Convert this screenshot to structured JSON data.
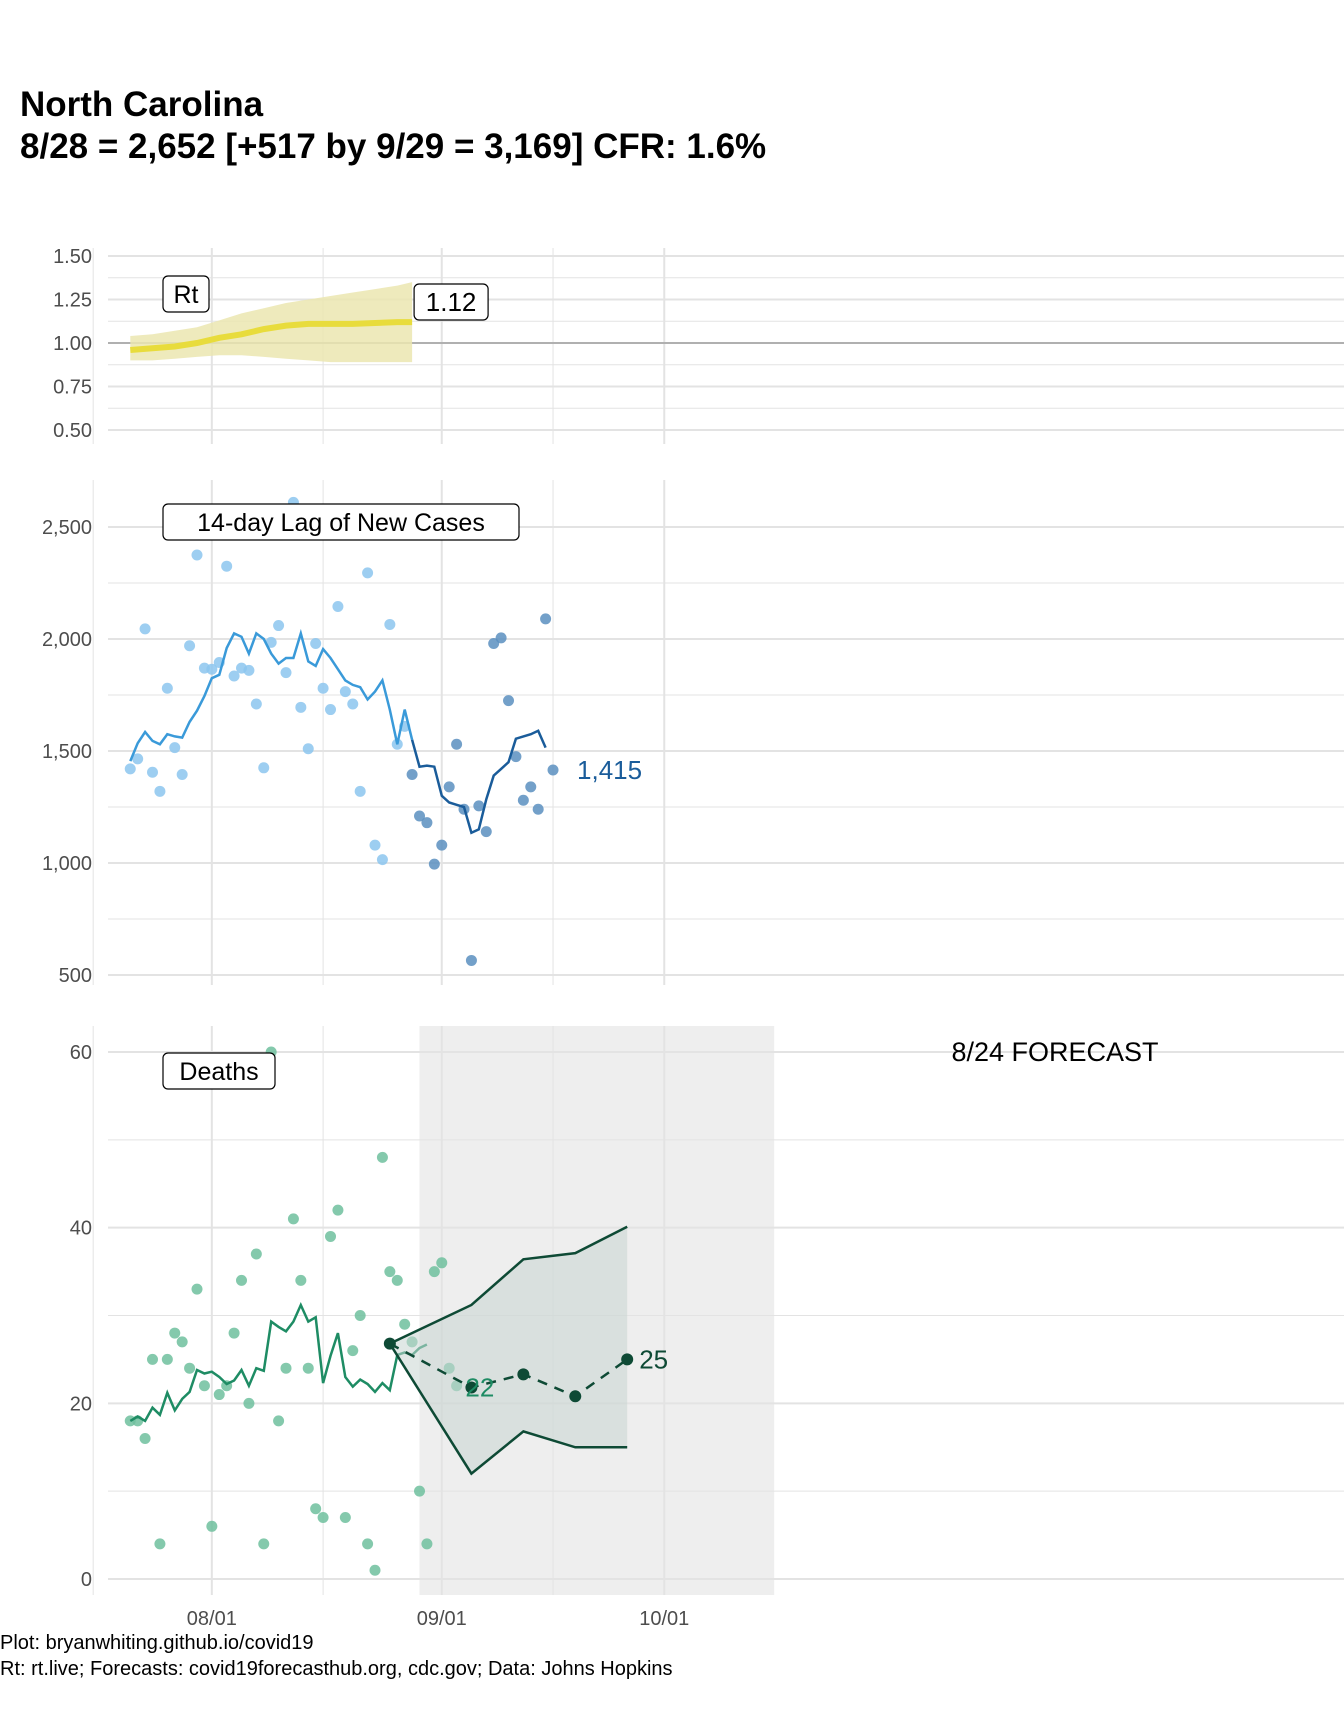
{
  "title": {
    "line1": "North Carolina",
    "line2": "8/28 = 2,652 [+517 by 9/29 = 3,169] CFR: 1.6%"
  },
  "caption": {
    "line1": "Plot: bryanwhiting.github.io/covid19",
    "line2": "Rt: rt.live; Forecasts: covid19forecasthub.org, cdc.gov; Data: Johns Hopkins"
  },
  "colors": {
    "rt_line": "#e8dc3c",
    "rt_band": "#ebe6b0",
    "cases_obs": "#3a9ad9",
    "cases_recent": "#1a5c9a",
    "cases_dot_obs": "#8cc6ef",
    "cases_dot_recent": "#5b8fc0",
    "deaths_line": "#1e8c64",
    "deaths_dot": "#6fbf9d",
    "forecast": "#0e4a35",
    "forecast_band": "#c8d6d2",
    "forecast_bg": "#eeeeee",
    "grid": "#e3e3e3",
    "refline": "#b0b0b0"
  },
  "chart_data": [
    {
      "type": "line",
      "panel": "rt",
      "label": "Rt",
      "ylim": [
        0.5,
        1.5
      ],
      "yticks": [
        "0.50",
        "0.75",
        "1.00",
        "1.25",
        "1.50"
      ],
      "ytick_values": [
        0.5,
        0.75,
        1.0,
        1.25,
        1.5
      ],
      "reference_line": 1.0,
      "end_label": "1.12",
      "series": [
        {
          "x": [
            "07/21",
            "07/24",
            "07/27",
            "07/30",
            "08/02",
            "08/05",
            "08/08",
            "08/11",
            "08/14",
            "08/17",
            "08/20",
            "08/23",
            "08/26",
            "08/28"
          ],
          "values": [
            0.96,
            0.97,
            0.98,
            1.0,
            1.03,
            1.05,
            1.08,
            1.1,
            1.11,
            1.11,
            1.11,
            1.115,
            1.12,
            1.12
          ],
          "lower": [
            0.9,
            0.9,
            0.91,
            0.92,
            0.93,
            0.93,
            0.92,
            0.91,
            0.9,
            0.89,
            0.89,
            0.89,
            0.89,
            0.89
          ],
          "upper": [
            1.04,
            1.05,
            1.07,
            1.09,
            1.13,
            1.17,
            1.2,
            1.23,
            1.25,
            1.27,
            1.29,
            1.31,
            1.33,
            1.35
          ]
        }
      ]
    },
    {
      "type": "scatter",
      "panel": "cases",
      "label": "14-day Lag of New Cases",
      "ylim": [
        500,
        2700
      ],
      "yticks": [
        "500",
        "1,000",
        "1,500",
        "2,000",
        "2,500"
      ],
      "ytick_values": [
        500,
        1000,
        1500,
        2000,
        2500
      ],
      "end_label": "1,415",
      "points": {
        "x": [
          "07/21",
          "07/22",
          "07/23",
          "07/24",
          "07/25",
          "07/26",
          "07/27",
          "07/28",
          "07/29",
          "07/30",
          "07/31",
          "08/01",
          "08/02",
          "08/03",
          "08/04",
          "08/05",
          "08/06",
          "08/07",
          "08/08",
          "08/09",
          "08/10",
          "08/11",
          "08/12",
          "08/13",
          "08/14",
          "08/15",
          "08/16",
          "08/17",
          "08/18",
          "08/19",
          "08/20",
          "08/21",
          "08/22",
          "08/23",
          "08/24",
          "08/25",
          "08/26",
          "08/27",
          "08/28",
          "08/29",
          "08/30",
          "08/31",
          "09/01",
          "09/02",
          "09/03",
          "09/04",
          "09/05",
          "09/06",
          "09/07",
          "09/08",
          "09/09",
          "09/10",
          "09/11",
          "09/12",
          "09/13",
          "09/14",
          "09/15",
          "09/16",
          "09/17",
          "09/18"
        ],
        "values": [
          1420,
          1465,
          2045,
          1405,
          1320,
          1780,
          1515,
          1395,
          1970,
          2375,
          1870,
          1865,
          1895,
          2325,
          1835,
          1870,
          1860,
          1710,
          1425,
          1985,
          2060,
          1850,
          2610,
          1695,
          1510,
          1980,
          1780,
          1685,
          2145,
          1765,
          1710,
          1320,
          2295,
          1080,
          1015,
          2065,
          1530,
          1610,
          1395,
          1210,
          1180,
          995,
          1080,
          1340,
          1530,
          1240,
          565,
          1255,
          1140,
          1980,
          2005,
          1725,
          1475,
          1280,
          1340,
          1240,
          2090,
          1415,
          null,
          null
        ]
      },
      "recent_from": "08/28",
      "series": [
        {
          "name": "rolling_mean",
          "x": [
            "07/21",
            "07/22",
            "07/23",
            "07/24",
            "07/25",
            "07/26",
            "07/27",
            "07/28",
            "07/29",
            "07/30",
            "07/31",
            "08/01",
            "08/02",
            "08/03",
            "08/04",
            "08/05",
            "08/06",
            "08/07",
            "08/08",
            "08/09",
            "08/10",
            "08/11",
            "08/12",
            "08/13",
            "08/14",
            "08/15",
            "08/16",
            "08/17",
            "08/18",
            "08/19",
            "08/20",
            "08/21",
            "08/22",
            "08/23",
            "08/24",
            "08/25",
            "08/26",
            "08/27",
            "08/28",
            "08/29",
            "08/30",
            "08/31",
            "09/01",
            "09/02",
            "09/03",
            "09/04",
            "09/05",
            "09/06",
            "09/07",
            "09/08",
            "09/09",
            "09/10",
            "09/11",
            "09/12",
            "09/13",
            "09/14",
            "09/15",
            "09/16",
            "09/17"
          ],
          "values": [
            1455,
            1535,
            1585,
            1545,
            1530,
            1575,
            1565,
            1560,
            1630,
            1680,
            1745,
            1825,
            1840,
            1960,
            2025,
            2010,
            1935,
            2025,
            2000,
            1935,
            1890,
            1915,
            1915,
            2025,
            1900,
            1880,
            1955,
            1915,
            1865,
            1815,
            1795,
            1785,
            1730,
            1765,
            1815,
            1685,
            1530,
            1685,
            1550,
            1430,
            1435,
            1430,
            1300,
            1270,
            1260,
            1250,
            1135,
            1150,
            1285,
            1390,
            1420,
            1450,
            1555,
            1565,
            1575,
            1590,
            1515,
            null,
            null
          ]
        }
      ]
    },
    {
      "type": "scatter",
      "panel": "deaths",
      "label": "Deaths",
      "ylim": [
        0,
        63
      ],
      "yticks": [
        "0",
        "20",
        "40",
        "60"
      ],
      "ytick_values": [
        0,
        20,
        40,
        60
      ],
      "forecast_label": "8/24 FORECAST",
      "forecast_start_label": "22",
      "forecast_end_label": "25",
      "points": {
        "x": [
          "07/21",
          "07/22",
          "07/23",
          "07/24",
          "07/25",
          "07/26",
          "07/27",
          "07/28",
          "07/29",
          "07/30",
          "07/31",
          "08/01",
          "08/02",
          "08/03",
          "08/04",
          "08/05",
          "08/06",
          "08/07",
          "08/08",
          "08/09",
          "08/10",
          "08/11",
          "08/12",
          "08/13",
          "08/14",
          "08/15",
          "08/16",
          "08/17",
          "08/18",
          "08/19",
          "08/20",
          "08/21",
          "08/22",
          "08/23",
          "08/24",
          "08/25",
          "08/26",
          "08/27",
          "08/28",
          "08/29",
          "08/30",
          "08/31",
          "09/01",
          "09/02",
          "09/03",
          "09/04",
          "09/05",
          "09/06",
          "09/07",
          "09/08",
          "09/09",
          "09/10",
          "09/11",
          "09/12",
          "09/13",
          "09/14",
          "09/15",
          "09/16",
          "09/17",
          "09/18"
        ],
        "values": [
          18,
          18,
          16,
          25,
          4,
          25,
          28,
          27,
          24,
          33,
          22,
          6,
          21,
          22,
          28,
          34,
          20,
          37,
          4,
          60,
          18,
          24,
          41,
          34,
          24,
          8,
          7,
          39,
          42,
          7,
          26,
          30,
          4,
          1,
          48,
          35,
          34,
          29,
          27,
          10,
          4,
          35,
          36,
          24,
          22,
          null,
          null,
          null,
          null,
          null,
          null,
          null,
          null,
          null,
          null,
          null,
          null,
          null,
          null,
          null
        ]
      },
      "series": [
        {
          "name": "rolling_mean",
          "x": [
            "07/21",
            "07/22",
            "07/23",
            "07/24",
            "07/25",
            "07/26",
            "07/27",
            "07/28",
            "07/29",
            "07/30",
            "07/31",
            "08/01",
            "08/02",
            "08/03",
            "08/04",
            "08/05",
            "08/06",
            "08/07",
            "08/08",
            "08/09",
            "08/10",
            "08/11",
            "08/12",
            "08/13",
            "08/14",
            "08/15",
            "08/16",
            "08/17",
            "08/18",
            "08/19",
            "08/20",
            "08/21",
            "08/22",
            "08/23",
            "08/24",
            "08/25",
            "08/26",
            "08/27",
            "08/28",
            "08/29",
            "08/30",
            "08/31",
            "09/01",
            "09/02",
            "09/03",
            "09/04"
          ],
          "values": [
            18,
            18.5,
            18,
            19.5,
            18.7,
            21.2,
            19.2,
            20.5,
            21.3,
            23.8,
            23.4,
            23.6,
            23,
            22.2,
            22.6,
            23.8,
            22,
            24,
            23.7,
            29.3,
            28.7,
            28.2,
            29.3,
            31.2,
            29.3,
            29.8,
            22.3,
            25.4,
            28,
            23,
            21.9,
            22.7,
            22.2,
            21.3,
            22.3,
            21.5,
            25.5,
            25.8,
            25.5,
            26.3,
            26.7,
            null,
            null,
            null,
            null,
            null
          ]
        },
        {
          "name": "forecast",
          "x": [
            "08/29",
            "09/05",
            "09/12",
            "09/19",
            "09/26"
          ],
          "values": [
            26.8,
            21.8,
            23.3,
            20.8,
            25
          ],
          "lower": [
            26.8,
            12,
            16.8,
            15,
            15
          ],
          "upper": [
            26.8,
            31.2,
            36.4,
            37.1,
            40.1
          ]
        }
      ]
    }
  ],
  "x_axis": {
    "ticks": [
      "08/01",
      "09/01",
      "10/01"
    ]
  }
}
